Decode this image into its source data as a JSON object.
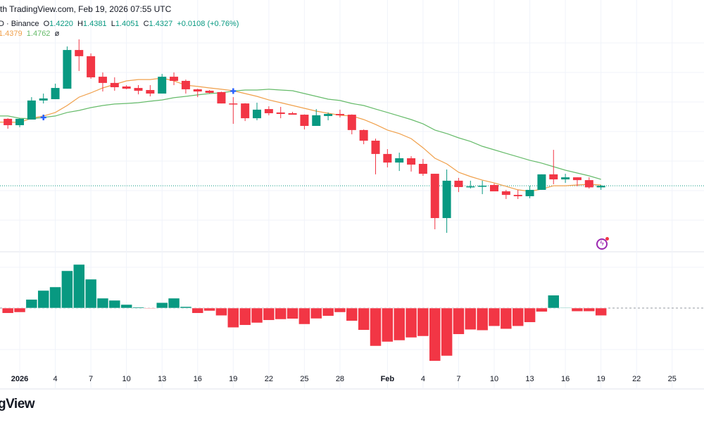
{
  "header": {
    "attribution": "th TradingView.com, Feb 19, 2026 07:55 UTC"
  },
  "legend": {
    "symbol": "D · Binance",
    "o_label": "O",
    "o": "1.4220",
    "h_label": "H",
    "h": "1.4381",
    "l_label": "L",
    "l": "1.4051",
    "c_label": "C",
    "c": "1.4327",
    "change": "+0.0108 (+0.76%)",
    "ma_fast": "1.4379",
    "ma_slow": "1.4762",
    "ma_extra": "ø"
  },
  "logo": "gView",
  "colors": {
    "up": "#089981",
    "down": "#f23645",
    "ma_fast": "#f0a04b",
    "ma_slow": "#66bb6a",
    "marker": "#2962ff",
    "grid": "#f0f3fa"
  },
  "icons": {
    "alert": "lightning-icon"
  },
  "chart_data": [
    {
      "type": "candlestick",
      "columns": [
        "date",
        "open",
        "high",
        "low",
        "close"
      ],
      "last_price": 1.4327,
      "ylim": [
        1.1,
        2.45
      ],
      "grid": true,
      "candles": [
        [
          "Dec 31",
          1.886,
          1.89,
          1.819,
          1.843
        ],
        [
          "Jan 1",
          1.843,
          1.89,
          1.829,
          1.886
        ],
        [
          "Jan 2",
          1.881,
          2.033,
          1.881,
          2.01
        ],
        [
          "Jan 3",
          2.01,
          2.057,
          1.99,
          2.024
        ],
        [
          "Jan 4",
          2.019,
          2.124,
          2.019,
          2.095
        ],
        [
          "Jan 5",
          2.09,
          2.376,
          2.09,
          2.352
        ],
        [
          "Jan 6",
          2.352,
          2.424,
          2.21,
          2.31
        ],
        [
          "Jan 7",
          2.31,
          2.329,
          2.157,
          2.167
        ],
        [
          "Jan 8",
          2.171,
          2.2,
          2.071,
          2.129
        ],
        [
          "Jan 9",
          2.129,
          2.167,
          2.076,
          2.1
        ],
        [
          "Jan 10",
          2.105,
          2.114,
          2.086,
          2.09
        ],
        [
          "Jan 11",
          2.095,
          2.114,
          2.052,
          2.076
        ],
        [
          "Jan 12",
          2.081,
          2.114,
          2.038,
          2.057
        ],
        [
          "Jan 13",
          2.057,
          2.19,
          2.057,
          2.171
        ],
        [
          "Jan 14",
          2.171,
          2.2,
          2.114,
          2.143
        ],
        [
          "Jan 15",
          2.143,
          2.152,
          2.057,
          2.086
        ],
        [
          "Jan 16",
          2.086,
          2.09,
          2.033,
          2.071
        ],
        [
          "Jan 17",
          2.076,
          2.081,
          2.057,
          2.062
        ],
        [
          "Jan 18",
          2.067,
          2.07,
          1.99,
          1.99
        ],
        [
          "Jan 19",
          1.99,
          2.033,
          1.852,
          1.988
        ],
        [
          "Jan 20",
          1.99,
          1.992,
          1.871,
          1.89
        ],
        [
          "Jan 21",
          1.89,
          1.995,
          1.876,
          1.948
        ],
        [
          "Jan 22",
          1.952,
          1.971,
          1.91,
          1.924
        ],
        [
          "Jan 23",
          1.929,
          1.967,
          1.89,
          1.919
        ],
        [
          "Jan 24",
          1.924,
          1.933,
          1.914,
          1.914
        ],
        [
          "Jan 25",
          1.914,
          1.916,
          1.814,
          1.838
        ],
        [
          "Jan 26",
          1.838,
          1.952,
          1.838,
          1.91
        ],
        [
          "Jan 27",
          1.905,
          1.929,
          1.876,
          1.919
        ],
        [
          "Jan 28",
          1.919,
          1.948,
          1.895,
          1.91
        ],
        [
          "Jan 29",
          1.914,
          1.916,
          1.781,
          1.81
        ],
        [
          "Jan 30",
          1.81,
          1.814,
          1.714,
          1.738
        ],
        [
          "Jan 31",
          1.738,
          1.752,
          1.51,
          1.648
        ],
        [
          "Feb 1",
          1.648,
          1.681,
          1.557,
          1.59
        ],
        [
          "Feb 2",
          1.59,
          1.657,
          1.533,
          1.619
        ],
        [
          "Feb 3",
          1.619,
          1.633,
          1.529,
          1.576
        ],
        [
          "Feb 4",
          1.581,
          1.614,
          1.5,
          1.514
        ],
        [
          "Feb 5",
          1.514,
          1.514,
          1.138,
          1.214
        ],
        [
          "Feb 6",
          1.214,
          1.543,
          1.114,
          1.467
        ],
        [
          "Feb 7",
          1.467,
          1.486,
          1.39,
          1.424
        ],
        [
          "Feb 8",
          1.424,
          1.467,
          1.414,
          1.429
        ],
        [
          "Feb 9",
          1.429,
          1.467,
          1.376,
          1.433
        ],
        [
          "Feb 10",
          1.438,
          1.448,
          1.395,
          1.395
        ],
        [
          "Feb 11",
          1.395,
          1.405,
          1.343,
          1.371
        ],
        [
          "Feb 12",
          1.371,
          1.405,
          1.343,
          1.362
        ],
        [
          "Feb 13",
          1.362,
          1.433,
          1.348,
          1.405
        ],
        [
          "Feb 14",
          1.405,
          1.51,
          1.405,
          1.51
        ],
        [
          "Feb 15",
          1.51,
          1.676,
          1.443,
          1.476
        ],
        [
          "Feb 16",
          1.476,
          1.514,
          1.452,
          1.49
        ],
        [
          "Feb 17",
          1.49,
          1.49,
          1.429,
          1.471
        ],
        [
          "Feb 18",
          1.471,
          1.49,
          1.414,
          1.422
        ],
        [
          "Feb 19",
          1.422,
          1.4381,
          1.4051,
          1.4327
        ]
      ],
      "ma_fast": [
        1.864,
        1.862,
        1.89,
        1.905,
        1.929,
        1.976,
        2.033,
        2.062,
        2.095,
        2.119,
        2.143,
        2.152,
        2.152,
        2.162,
        2.143,
        2.114,
        2.105,
        2.095,
        2.086,
        2.076,
        2.057,
        2.038,
        2.014,
        1.995,
        1.976,
        1.957,
        1.938,
        1.924,
        1.91,
        1.905,
        1.881,
        1.848,
        1.81,
        1.786,
        1.752,
        1.69,
        1.619,
        1.581,
        1.524,
        1.495,
        1.471,
        1.452,
        1.429,
        1.405,
        1.395,
        1.41,
        1.433,
        1.433,
        1.438,
        1.443,
        1.4379
      ],
      "ma_slow": [
        1.905,
        1.89,
        1.886,
        1.895,
        1.905,
        1.929,
        1.943,
        1.962,
        1.976,
        1.986,
        1.99,
        1.995,
        2.005,
        2.014,
        2.029,
        2.038,
        2.048,
        2.057,
        2.062,
        2.074,
        2.081,
        2.081,
        2.086,
        2.081,
        2.076,
        2.057,
        2.038,
        2.019,
        2.01,
        1.99,
        1.976,
        1.952,
        1.929,
        1.905,
        1.881,
        1.852,
        1.81,
        1.786,
        1.757,
        1.733,
        1.7,
        1.676,
        1.652,
        1.629,
        1.605,
        1.586,
        1.562,
        1.538,
        1.519,
        1.5,
        1.4762
      ],
      "cross_markers": [
        "Jan 3",
        "Jan 19"
      ]
    },
    {
      "type": "histogram",
      "dates_from": "Dec 31",
      "values": [
        -0.0073,
        -0.006,
        0.0123,
        0.025,
        0.03,
        0.053,
        0.062,
        0.041,
        0.014,
        0.011,
        0.005,
        0.0013,
        -0.0005,
        0.0077,
        0.014,
        0.002,
        -0.0073,
        -0.004,
        -0.0107,
        -0.0277,
        -0.0243,
        -0.021,
        -0.0173,
        -0.016,
        -0.0153,
        -0.023,
        -0.015,
        -0.0113,
        -0.006,
        -0.0183,
        -0.0313,
        -0.054,
        -0.048,
        -0.046,
        -0.042,
        -0.04,
        -0.0753,
        -0.068,
        -0.0373,
        -0.0307,
        -0.0317,
        -0.0257,
        -0.0297,
        -0.0257,
        -0.0203,
        -0.0053,
        0.0183,
        0.0005,
        -0.0047,
        -0.0047,
        -0.0107
      ]
    }
  ],
  "time_axis": {
    "jan_labels": [
      "2026",
      "4",
      "7",
      "10",
      "13",
      "16",
      "19",
      "22",
      "25",
      "28"
    ],
    "feb_labels": [
      "Feb",
      "4",
      "7",
      "10",
      "13",
      "16",
      "19",
      "22",
      "25"
    ]
  }
}
